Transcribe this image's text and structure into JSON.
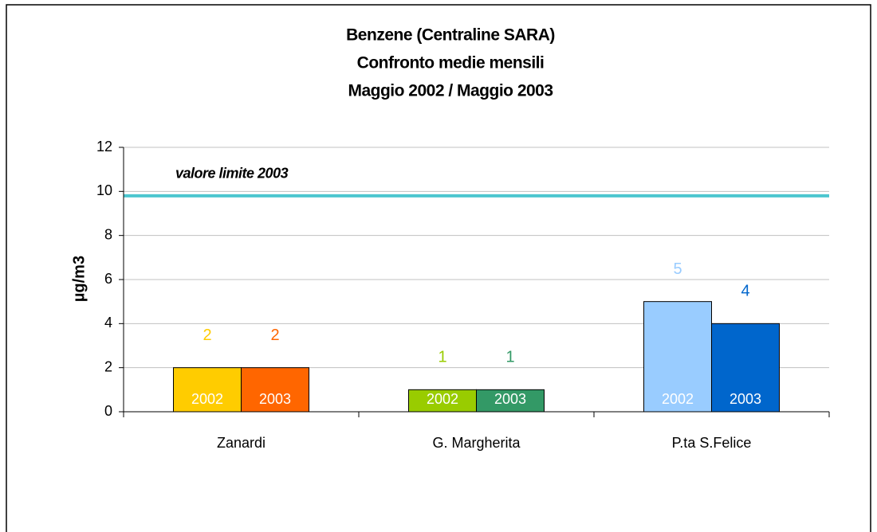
{
  "chart_data": {
    "type": "bar",
    "title": [
      "Benzene (Centraline SARA)",
      "Confronto medie mensili",
      "Maggio 2002 / Maggio 2003"
    ],
    "ylabel": "µg/m3",
    "categories": [
      "Zanardi",
      "G. Margherita",
      "P.ta S.Felice"
    ],
    "series": [
      {
        "name": "2002",
        "colors": [
          "#ffcc00",
          "#99cc00",
          "#99ccff"
        ],
        "values": [
          2,
          1,
          5
        ]
      },
      {
        "name": "2003",
        "colors": [
          "#ff6600",
          "#339966",
          "#0066cc"
        ],
        "values": [
          2,
          1,
          4
        ]
      }
    ],
    "ylim": [
      0,
      12
    ],
    "yticks": [
      0,
      2,
      4,
      6,
      8,
      10,
      12
    ],
    "grid": true,
    "reference_line": {
      "label": "valore limite 2003",
      "value": 9.8,
      "color": "#4cc6cf"
    }
  }
}
